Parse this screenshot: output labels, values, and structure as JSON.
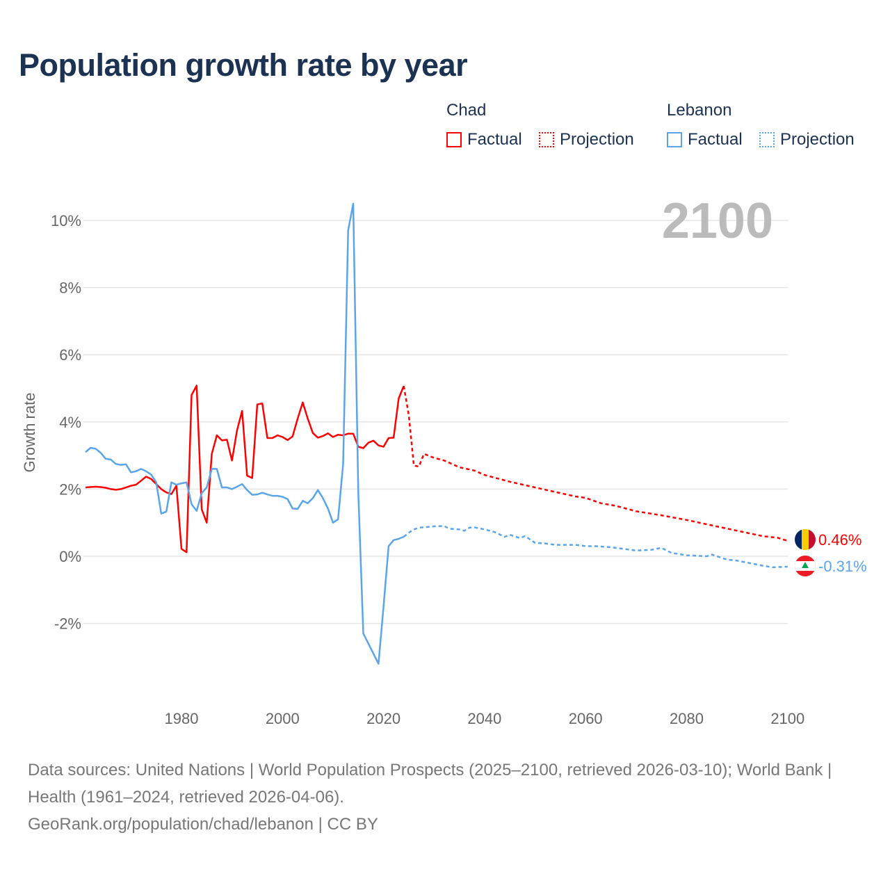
{
  "title": "Population growth rate by year",
  "legend": {
    "groups": [
      {
        "name": "Chad",
        "color": "#ff0000",
        "factual": "Factual",
        "projection": "Projection"
      },
      {
        "name": "Lebanon",
        "color": "#5aa5ea",
        "factual": "Factual",
        "projection": "Projection"
      }
    ]
  },
  "year_label": "2100",
  "footer": {
    "sources": "Data sources: United Nations | World Population Prospects (2025–2100, retrieved 2026-03-10); World Bank | Health (1961–2024, retrieved 2026-04-06).",
    "link": "GeoRank.org/population/chad/lebanon | CC BY"
  },
  "chart_data": {
    "type": "line",
    "title": "Population growth rate by year",
    "xlabel": "",
    "ylabel": "Growth rate",
    "xlim": [
      1961,
      2100
    ],
    "ylim": [
      -4,
      10.8
    ],
    "xticks": [
      1980,
      2000,
      2020,
      2040,
      2060,
      2080,
      2100
    ],
    "yticks": [
      -2,
      0,
      2,
      4,
      6,
      8,
      10
    ],
    "ytick_labels": [
      "-2%",
      "0%",
      "2%",
      "4%",
      "6%",
      "8%",
      "10%"
    ],
    "grid": true,
    "series": [
      {
        "name": "Chad",
        "color": "#ff0000",
        "end_label": "0.46%",
        "factual_start": 1961,
        "factual": [
          2.05,
          2.06,
          2.07,
          2.06,
          2.04,
          2.0,
          1.98,
          2.0,
          2.05,
          2.1,
          2.13,
          2.25,
          2.37,
          2.3,
          2.15,
          2.0,
          1.9,
          1.85,
          2.1,
          0.22,
          0.12,
          4.8,
          5.08,
          1.4,
          1.0,
          3.05,
          3.6,
          3.45,
          3.47,
          2.85,
          3.75,
          4.33,
          2.4,
          2.33,
          4.52,
          4.55,
          3.52,
          3.52,
          3.6,
          3.55,
          3.46,
          3.57,
          4.1,
          4.58,
          4.1,
          3.67,
          3.53,
          3.58,
          3.66,
          3.55,
          3.62,
          3.6,
          3.65,
          3.65,
          3.26,
          3.22,
          3.38,
          3.44,
          3.3,
          3.26,
          3.52,
          3.53,
          4.7,
          5.07
        ],
        "projection": [
          [
            2024,
            5.07
          ],
          [
            2025,
            4.2
          ],
          [
            2026,
            2.7
          ],
          [
            2027,
            2.67
          ],
          [
            2028,
            3.05
          ],
          [
            2030,
            2.93
          ],
          [
            2032,
            2.85
          ],
          [
            2035,
            2.65
          ],
          [
            2038,
            2.55
          ],
          [
            2040,
            2.42
          ],
          [
            2045,
            2.22
          ],
          [
            2050,
            2.05
          ],
          [
            2055,
            1.88
          ],
          [
            2058,
            1.78
          ],
          [
            2060,
            1.74
          ],
          [
            2063,
            1.58
          ],
          [
            2066,
            1.5
          ],
          [
            2070,
            1.34
          ],
          [
            2075,
            1.22
          ],
          [
            2080,
            1.08
          ],
          [
            2085,
            0.92
          ],
          [
            2090,
            0.76
          ],
          [
            2095,
            0.6
          ],
          [
            2098,
            0.55
          ],
          [
            2100,
            0.46
          ]
        ]
      },
      {
        "name": "Lebanon",
        "color": "#5aa5ea",
        "end_label": "-0.31%",
        "factual_start": 1961,
        "factual": [
          3.1,
          3.23,
          3.2,
          3.08,
          2.9,
          2.88,
          2.75,
          2.72,
          2.74,
          2.5,
          2.53,
          2.6,
          2.53,
          2.43,
          2.2,
          1.27,
          1.33,
          2.2,
          2.13,
          2.17,
          2.2,
          1.55,
          1.35,
          1.88,
          2.05,
          2.6,
          2.6,
          2.05,
          2.05,
          2.0,
          2.07,
          2.15,
          1.97,
          1.83,
          1.84,
          1.89,
          1.84,
          1.8,
          1.8,
          1.77,
          1.7,
          1.42,
          1.41,
          1.65,
          1.58,
          1.73,
          1.97,
          1.73,
          1.42,
          1.0,
          1.1,
          2.75,
          9.7,
          10.5,
          1.9,
          -2.3,
          -2.6,
          -2.9,
          -3.2,
          -1.5,
          0.3,
          0.48,
          0.52,
          0.58
        ],
        "projection": [
          [
            2024,
            0.58
          ],
          [
            2025,
            0.7
          ],
          [
            2026,
            0.8
          ],
          [
            2027,
            0.85
          ],
          [
            2030,
            0.89
          ],
          [
            2032,
            0.9
          ],
          [
            2033,
            0.82
          ],
          [
            2035,
            0.8
          ],
          [
            2036,
            0.76
          ],
          [
            2037,
            0.85
          ],
          [
            2038,
            0.86
          ],
          [
            2040,
            0.8
          ],
          [
            2042,
            0.72
          ],
          [
            2044,
            0.58
          ],
          [
            2045,
            0.64
          ],
          [
            2047,
            0.54
          ],
          [
            2048,
            0.6
          ],
          [
            2050,
            0.4
          ],
          [
            2052,
            0.38
          ],
          [
            2054,
            0.34
          ],
          [
            2058,
            0.34
          ],
          [
            2060,
            0.3
          ],
          [
            2062,
            0.3
          ],
          [
            2065,
            0.27
          ],
          [
            2070,
            0.17
          ],
          [
            2073,
            0.19
          ],
          [
            2075,
            0.25
          ],
          [
            2077,
            0.1
          ],
          [
            2080,
            0.03
          ],
          [
            2084,
            0.0
          ],
          [
            2085,
            0.05
          ],
          [
            2088,
            -0.1
          ],
          [
            2090,
            -0.13
          ],
          [
            2095,
            -0.28
          ],
          [
            2097,
            -0.33
          ],
          [
            2100,
            -0.31
          ]
        ]
      }
    ]
  }
}
